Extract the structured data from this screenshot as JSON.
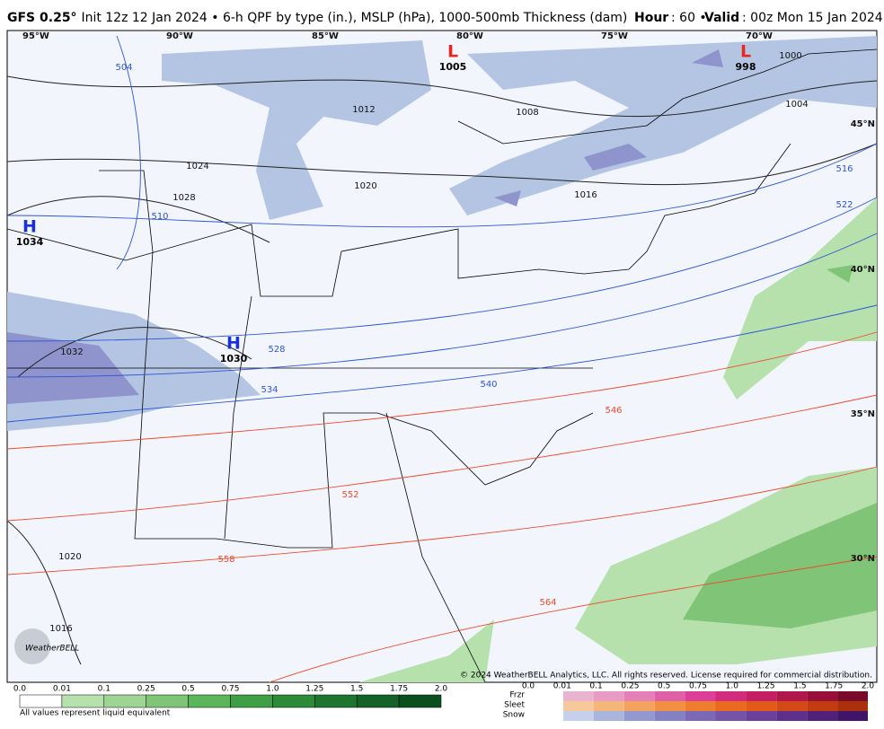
{
  "header": {
    "title": "GFS 0.25° Init 12z 12 Jan 2024 • 6-h QPF by type (in.), MSLP (hPa), 1000-500mb Thickness (dam)",
    "hour_label": "Hour",
    "hour": ": 60 •",
    "valid_label": "Valid",
    "valid": ": 00z Mon 15 Jan 2024"
  },
  "map": {
    "lon_labels": [
      "95°W",
      "90°W",
      "85°W",
      "80°W",
      "75°W",
      "70°W"
    ],
    "lat_labels": [
      "45°N",
      "40°N",
      "35°N",
      "30°N"
    ],
    "pressure_centers": [
      {
        "type": "H",
        "value": "1034"
      },
      {
        "type": "H",
        "value": "1030"
      },
      {
        "type": "L",
        "value": "1005"
      },
      {
        "type": "L",
        "value": "998"
      }
    ],
    "isobar_labels": [
      "1012",
      "1008",
      "1004",
      "1024",
      "1020",
      "1016",
      "1028",
      "1032",
      "1020",
      "1016",
      "1000"
    ],
    "thickness_labels": [
      "504",
      "510",
      "516",
      "522",
      "528",
      "534",
      "540",
      "546",
      "552",
      "558",
      "564"
    ],
    "logo": "WeatherBELL"
  },
  "copyright": "© 2024 WeatherBELL Analytics, LLC. All rights reserved. License required for commercial distribution.",
  "legend": {
    "qpf_ticks": [
      "0.0",
      "0.01",
      "0.1",
      "0.25",
      "0.5",
      "0.75",
      "1.0",
      "1.25",
      "1.5",
      "1.75",
      "2.0"
    ],
    "note": "All values represent liquid equivalent",
    "type_labels": [
      "Frzr",
      "Sleet",
      "Snow"
    ],
    "type_ticks": [
      "0.0",
      "0.01",
      "0.1",
      "0.25",
      "0.5",
      "0.75",
      "1.0",
      "1.25",
      "1.5",
      "1.75",
      "2.0"
    ]
  }
}
